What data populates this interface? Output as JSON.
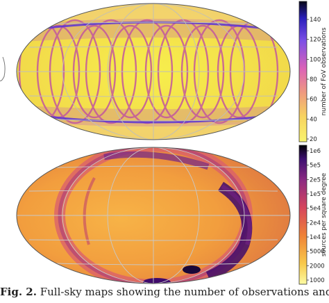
{
  "panels": [
    {
      "colorbar_label": "number of FoV observations",
      "colorbar_ticks": [
        "140",
        "120",
        "100",
        "80",
        "60",
        "40",
        "20"
      ],
      "scale": "linear",
      "colors": {
        "background": "#f4e64a",
        "band": "#b867a6",
        "pole": "#f2c66a",
        "grid": "#bdbdbd"
      }
    },
    {
      "colorbar_label": "sources per square degree",
      "colorbar_ticks": [
        "1e6",
        "5e5",
        "2e5",
        "1e5",
        "5e4",
        "2e4",
        "1e4",
        "5000",
        "2000",
        "1000"
      ],
      "scale": "log",
      "colors": {
        "background": "#f3a23b",
        "ring": "#d95d6d",
        "dense": "#3f0a6b",
        "grid": "#c8c8c8"
      }
    }
  ],
  "caption": {
    "label": "Fig. 2.",
    "text": "Full-sky maps showing the number of observations and the source density"
  }
}
